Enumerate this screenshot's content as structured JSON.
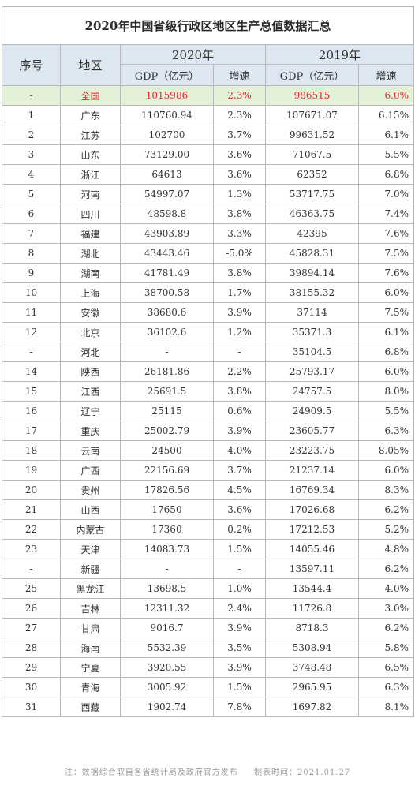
{
  "title": "2020年中国省级行政区地区生产总值数据汇总",
  "headers": {
    "rank": "序号",
    "region": "地区",
    "year_2020": "2020年",
    "year_2019": "2019年",
    "gdp": "GDP（亿元）",
    "growth": "增速"
  },
  "national": {
    "rank": "-",
    "region": "全国",
    "gdp2020": "1015986",
    "g2020": "2.3%",
    "gdp2019": "986515",
    "g2019": "6.0%"
  },
  "rows": [
    {
      "rank": "1",
      "region": "广东",
      "gdp2020": "110760.94",
      "g2020": "2.3%",
      "gdp2019": "107671.07",
      "g2019": "6.15%"
    },
    {
      "rank": "2",
      "region": "江苏",
      "gdp2020": "102700",
      "g2020": "3.7%",
      "gdp2019": "99631.52",
      "g2019": "6.1%"
    },
    {
      "rank": "3",
      "region": "山东",
      "gdp2020": "73129.00",
      "g2020": "3.6%",
      "gdp2019": "71067.5",
      "g2019": "5.5%"
    },
    {
      "rank": "4",
      "region": "浙江",
      "gdp2020": "64613",
      "g2020": "3.6%",
      "gdp2019": "62352",
      "g2019": "6.8%"
    },
    {
      "rank": "5",
      "region": "河南",
      "gdp2020": "54997.07",
      "g2020": "1.3%",
      "gdp2019": "53717.75",
      "g2019": "7.0%"
    },
    {
      "rank": "6",
      "region": "四川",
      "gdp2020": "48598.8",
      "g2020": "3.8%",
      "gdp2019": "46363.75",
      "g2019": "7.4%"
    },
    {
      "rank": "7",
      "region": "福建",
      "gdp2020": "43903.89",
      "g2020": "3.3%",
      "gdp2019": "42395",
      "g2019": "7.6%"
    },
    {
      "rank": "8",
      "region": "湖北",
      "gdp2020": "43443.46",
      "g2020": "-5.0%",
      "gdp2019": "45828.31",
      "g2019": "7.5%"
    },
    {
      "rank": "9",
      "region": "湖南",
      "gdp2020": "41781.49",
      "g2020": "3.8%",
      "gdp2019": "39894.14",
      "g2019": "7.6%"
    },
    {
      "rank": "10",
      "region": "上海",
      "gdp2020": "38700.58",
      "g2020": "1.7%",
      "gdp2019": "38155.32",
      "g2019": "6.0%"
    },
    {
      "rank": "11",
      "region": "安徽",
      "gdp2020": "38680.6",
      "g2020": "3.9%",
      "gdp2019": "37114",
      "g2019": "7.5%"
    },
    {
      "rank": "12",
      "region": "北京",
      "gdp2020": "36102.6",
      "g2020": "1.2%",
      "gdp2019": "35371.3",
      "g2019": "6.1%"
    },
    {
      "rank": "-",
      "region": "河北",
      "gdp2020": "-",
      "g2020": "-",
      "gdp2019": "35104.5",
      "g2019": "6.8%"
    },
    {
      "rank": "14",
      "region": "陕西",
      "gdp2020": "26181.86",
      "g2020": "2.2%",
      "gdp2019": "25793.17",
      "g2019": "6.0%"
    },
    {
      "rank": "15",
      "region": "江西",
      "gdp2020": "25691.5",
      "g2020": "3.8%",
      "gdp2019": "24757.5",
      "g2019": "8.0%"
    },
    {
      "rank": "16",
      "region": "辽宁",
      "gdp2020": "25115",
      "g2020": "0.6%",
      "gdp2019": "24909.5",
      "g2019": "5.5%"
    },
    {
      "rank": "17",
      "region": "重庆",
      "gdp2020": "25002.79",
      "g2020": "3.9%",
      "gdp2019": "23605.77",
      "g2019": "6.3%"
    },
    {
      "rank": "18",
      "region": "云南",
      "gdp2020": "24500",
      "g2020": "4.0%",
      "gdp2019": "23223.75",
      "g2019": "8.05%"
    },
    {
      "rank": "19",
      "region": "广西",
      "gdp2020": "22156.69",
      "g2020": "3.7%",
      "gdp2019": "21237.14",
      "g2019": "6.0%"
    },
    {
      "rank": "20",
      "region": "贵州",
      "gdp2020": "17826.56",
      "g2020": "4.5%",
      "gdp2019": "16769.34",
      "g2019": "8.3%"
    },
    {
      "rank": "21",
      "region": "山西",
      "gdp2020": "17650",
      "g2020": "3.6%",
      "gdp2019": "17026.68",
      "g2019": "6.2%"
    },
    {
      "rank": "22",
      "region": "内蒙古",
      "gdp2020": "17360",
      "g2020": "0.2%",
      "gdp2019": "17212.53",
      "g2019": "5.2%"
    },
    {
      "rank": "23",
      "region": "天津",
      "gdp2020": "14083.73",
      "g2020": "1.5%",
      "gdp2019": "14055.46",
      "g2019": "4.8%"
    },
    {
      "rank": "-",
      "region": "新疆",
      "gdp2020": "-",
      "g2020": "-",
      "gdp2019": "13597.11",
      "g2019": "6.2%"
    },
    {
      "rank": "25",
      "region": "黑龙江",
      "gdp2020": "13698.5",
      "g2020": "1.0%",
      "gdp2019": "13544.4",
      "g2019": "4.0%"
    },
    {
      "rank": "26",
      "region": "吉林",
      "gdp2020": "12311.32",
      "g2020": "2.4%",
      "gdp2019": "11726.8",
      "g2019": "3.0%"
    },
    {
      "rank": "27",
      "region": "甘肃",
      "gdp2020": "9016.7",
      "g2020": "3.9%",
      "gdp2019": "8718.3",
      "g2019": "6.2%"
    },
    {
      "rank": "28",
      "region": "海南",
      "gdp2020": "5532.39",
      "g2020": "3.5%",
      "gdp2019": "5308.94",
      "g2019": "5.8%"
    },
    {
      "rank": "29",
      "region": "宁夏",
      "gdp2020": "3920.55",
      "g2020": "3.9%",
      "gdp2019": "3748.48",
      "g2019": "6.5%"
    },
    {
      "rank": "30",
      "region": "青海",
      "gdp2020": "3005.92",
      "g2020": "1.5%",
      "gdp2019": "2965.95",
      "g2019": "6.3%"
    },
    {
      "rank": "31",
      "region": "西藏",
      "gdp2020": "1902.74",
      "g2020": "7.8%",
      "gdp2019": "1697.82",
      "g2019": "8.1%"
    }
  ],
  "footer": {
    "note": "注：数据综合取自各省统计局及政府官方发布",
    "date": "制表时间：2021.01.27"
  },
  "colors": {
    "header_bg": "#dde7f1",
    "national_bg": "#e4f1d9",
    "national_text": "#e12b2b",
    "border": "#b9b9b9"
  }
}
